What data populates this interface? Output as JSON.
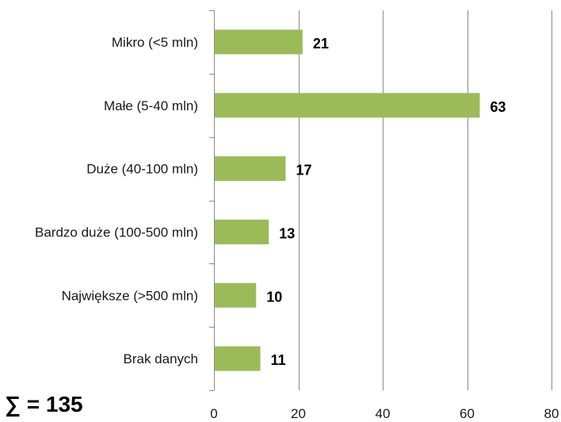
{
  "chart_data": {
    "type": "bar",
    "orientation": "horizontal",
    "categories": [
      "Mikro (<5 mln)",
      "Małe (5-40 mln)",
      "Duże (40-100 mln)",
      "Bardzo duże (100-500 mln)",
      "Największe (>500 mln)",
      "Brak danych"
    ],
    "values": [
      21,
      63,
      17,
      13,
      10,
      11
    ],
    "xlim": [
      0,
      80
    ],
    "xticks": [
      0,
      20,
      40,
      60,
      80
    ],
    "grid": true,
    "bar_color": "#9bbb59",
    "grid_color": "#8c8c8c"
  },
  "summary": {
    "text": "∑ = 135"
  }
}
